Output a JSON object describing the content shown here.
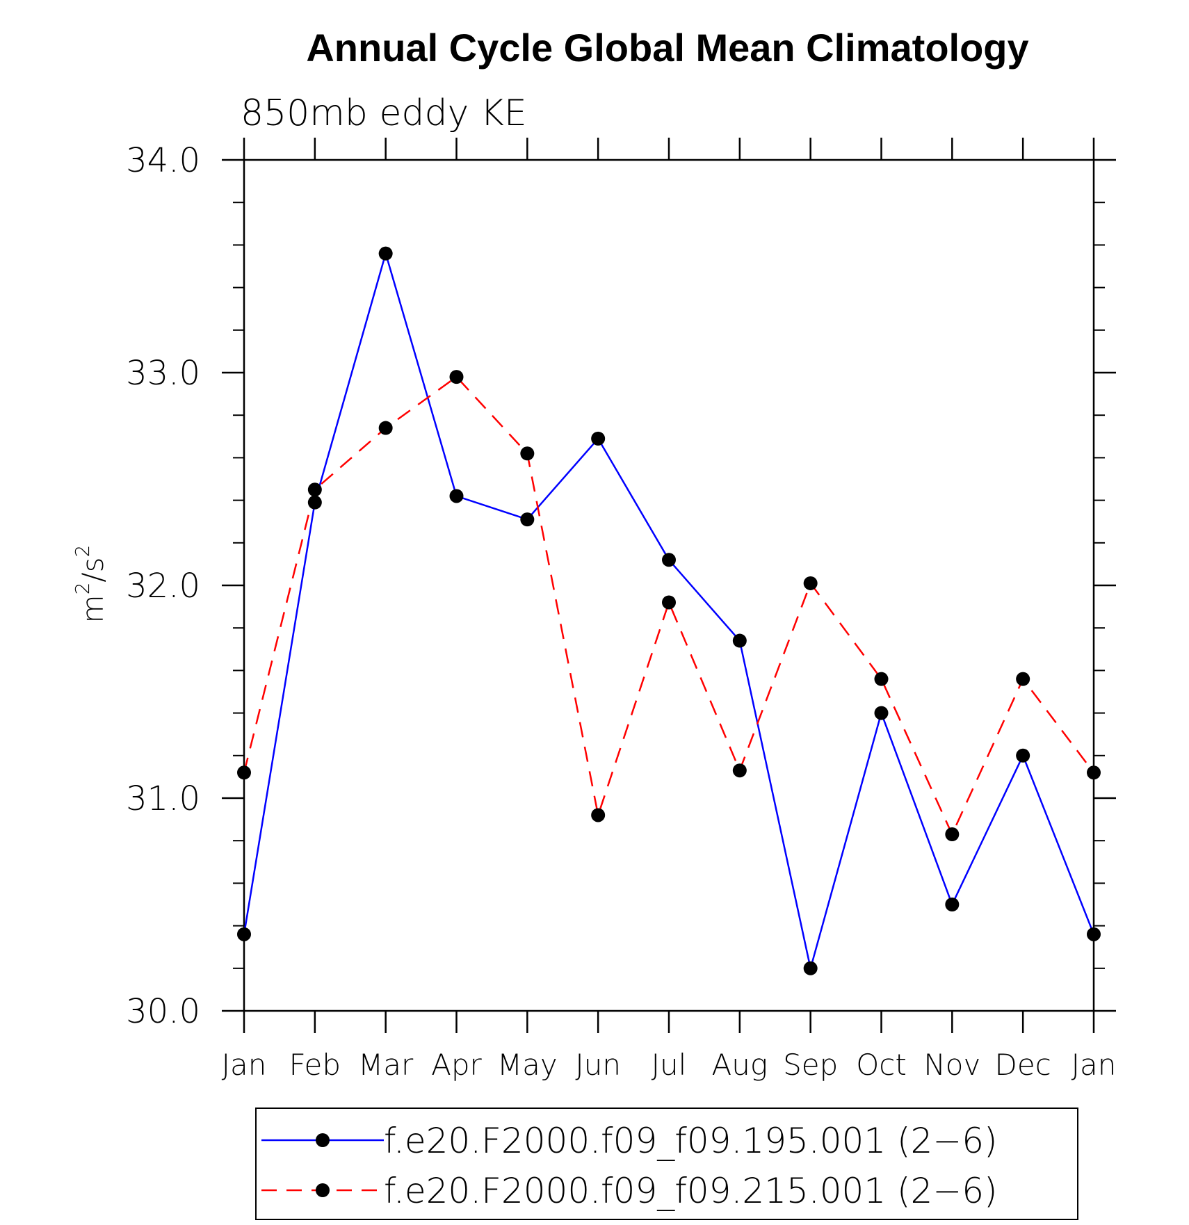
{
  "chart_data": {
    "type": "line",
    "title": "Annual Cycle Global Mean Climatology",
    "subtitle": "850mb eddy KE",
    "ylabel": {
      "base": "m",
      "exp1": "2",
      "mid": "/s",
      "exp2": "2"
    },
    "xlabel": "",
    "categories": [
      "Jan",
      "Feb",
      "Mar",
      "Apr",
      "May",
      "Jun",
      "Jul",
      "Aug",
      "Sep",
      "Oct",
      "Nov",
      "Dec",
      "Jan"
    ],
    "ylim": [
      30.0,
      34.0
    ],
    "yticks": [
      "30.0",
      "31.0",
      "32.0",
      "33.0",
      "34.0"
    ],
    "grid": false,
    "legend_position": "bottom",
    "series": [
      {
        "name": "f.e20.F2000.f09_f09.195.001 (2−6)",
        "color": "#0000ff",
        "dash": "solid",
        "values": [
          30.36,
          32.39,
          33.56,
          32.42,
          32.31,
          32.69,
          32.12,
          31.74,
          30.2,
          31.4,
          30.5,
          31.2,
          30.36
        ]
      },
      {
        "name": "f.e20.F2000.f09_f09.215.001 (2−6)",
        "color": "#ff0000",
        "dash": "dashed",
        "values": [
          31.12,
          32.45,
          32.74,
          32.98,
          32.62,
          30.92,
          31.92,
          31.13,
          32.01,
          31.56,
          30.83,
          31.56,
          31.12
        ]
      }
    ]
  }
}
